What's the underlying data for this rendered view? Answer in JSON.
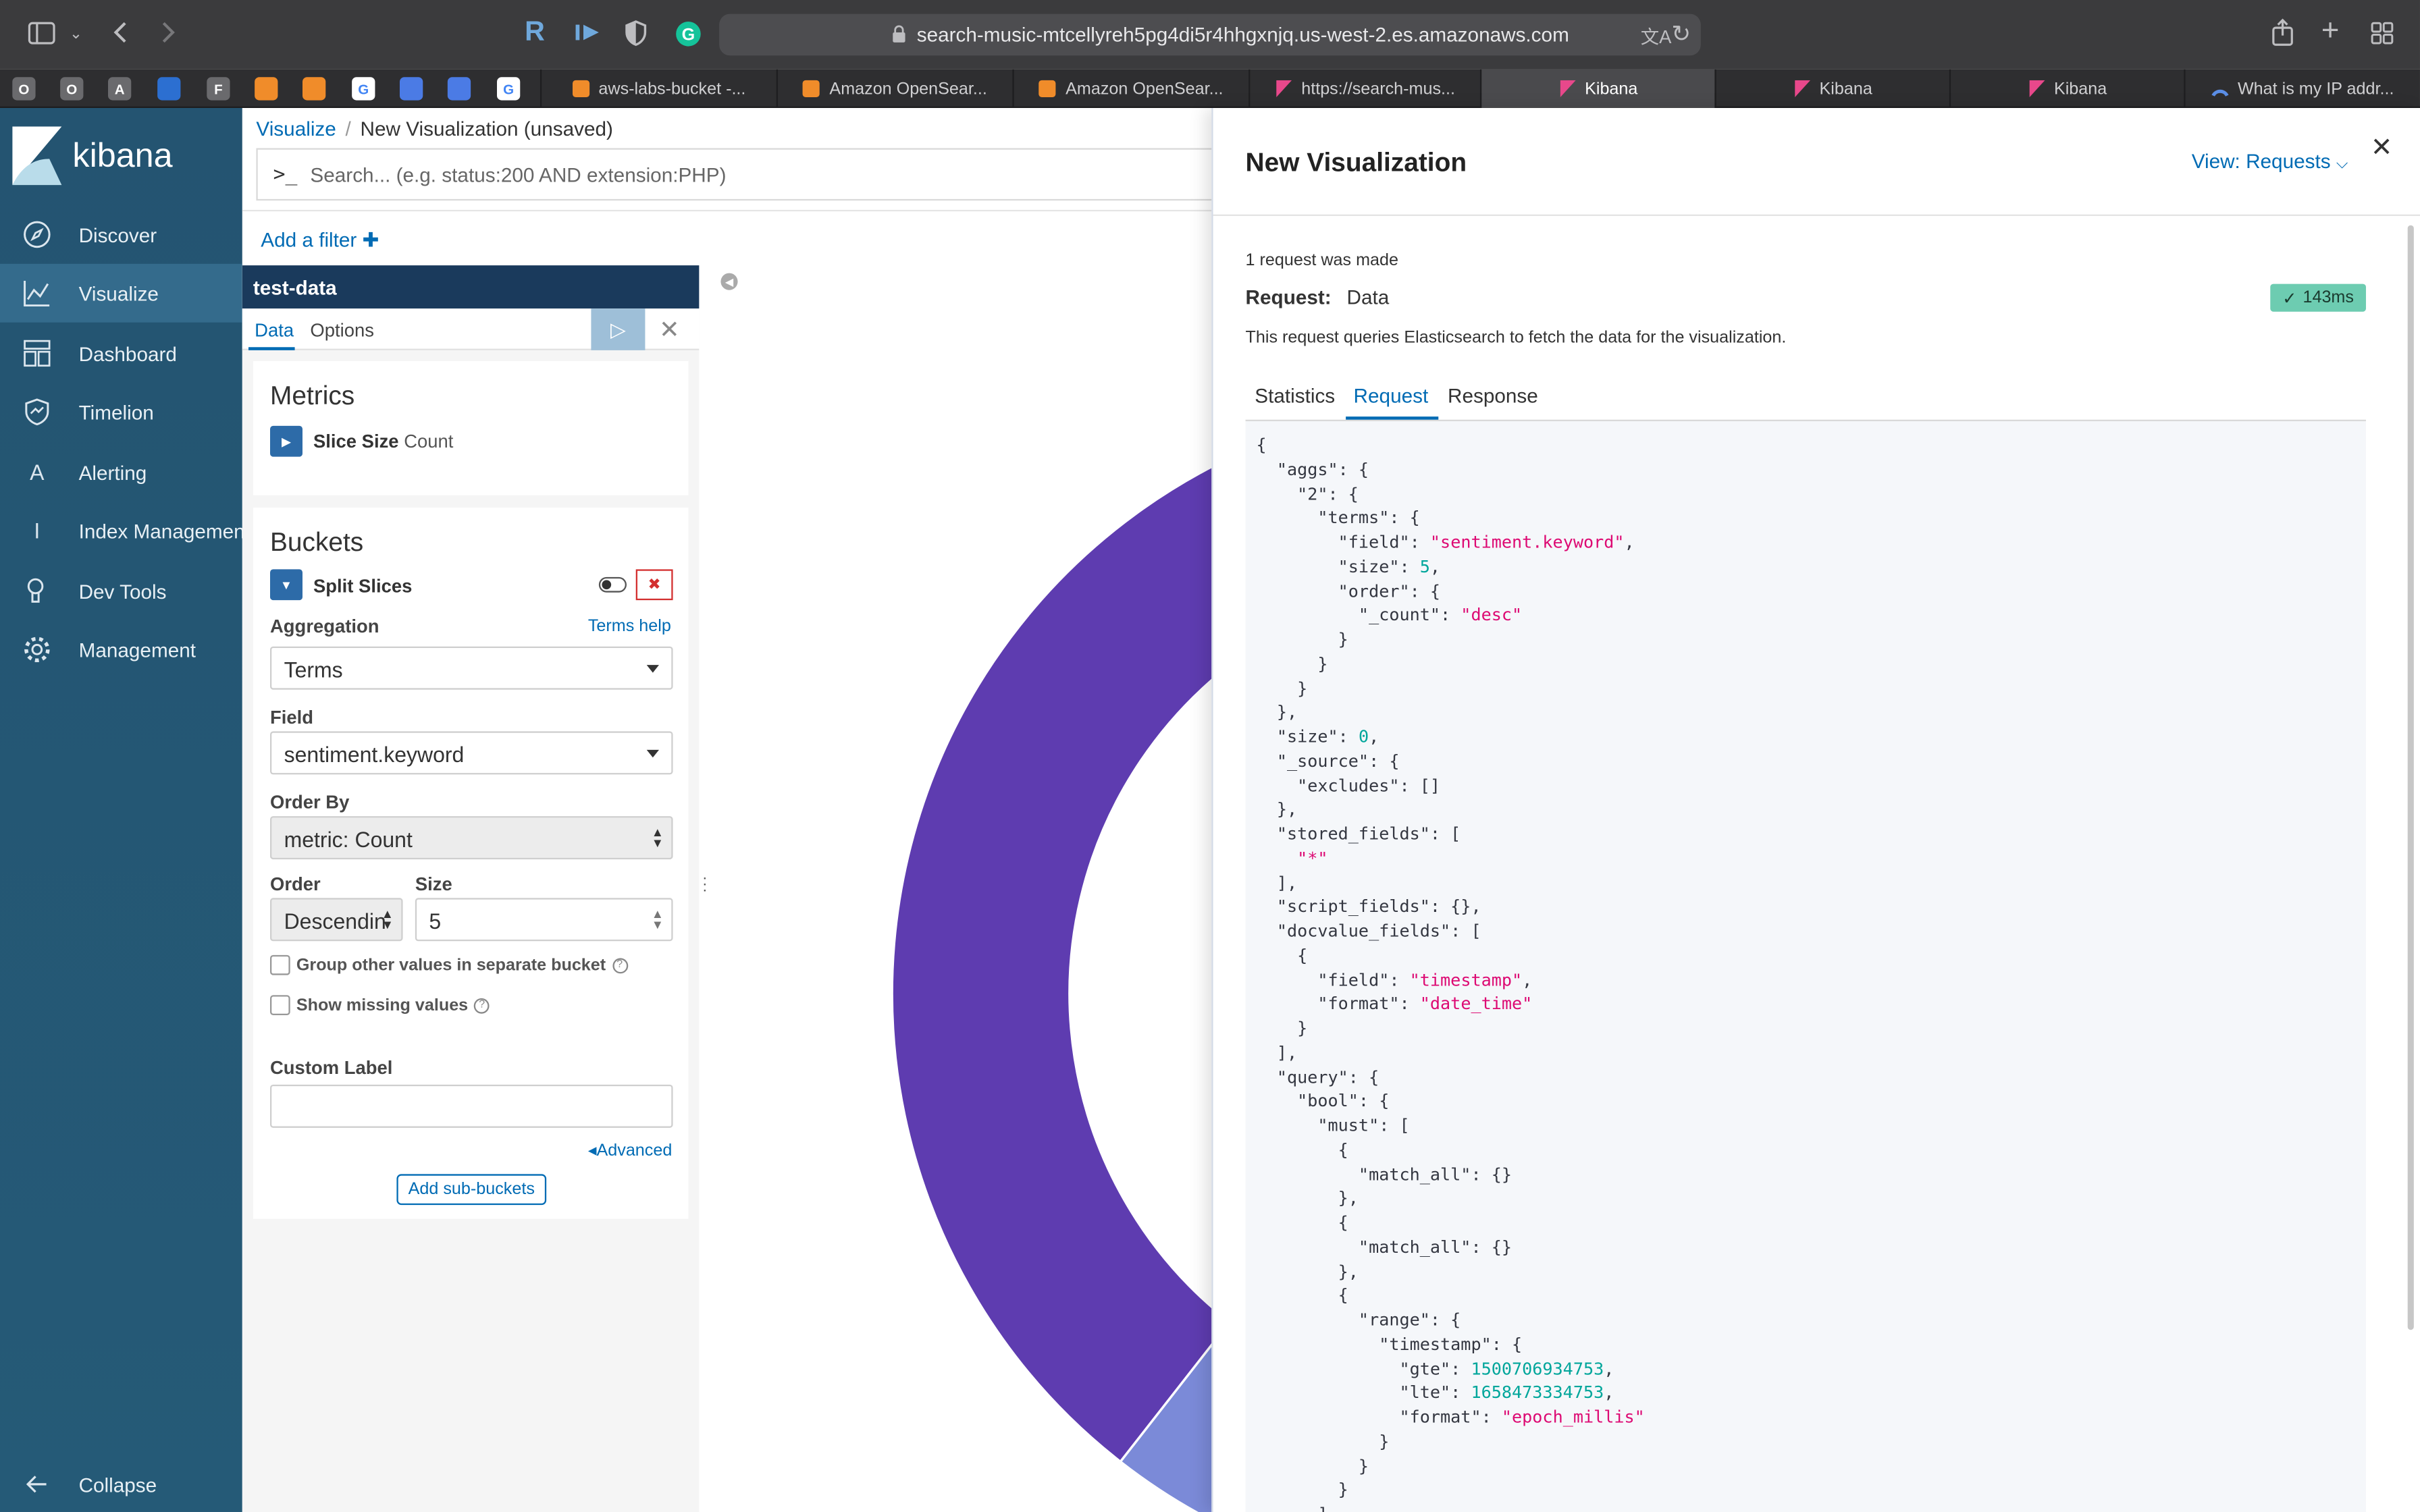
{
  "browser": {
    "url": "search-music-mtcellyreh5pg4di5r4hhgxnjq.us-west-2.es.amazonaws.com",
    "pinned_tabs": [
      "O",
      "O",
      "A",
      "",
      "F",
      "",
      "",
      "",
      "",
      "",
      ""
    ],
    "tabs": [
      {
        "label": "aws-labs-bucket -...",
        "icon": "aws-cube-icon",
        "active": false
      },
      {
        "label": "Amazon OpenSear...",
        "icon": "aws-cube-icon",
        "active": false
      },
      {
        "label": "Amazon OpenSear...",
        "icon": "aws-cube-icon",
        "active": false
      },
      {
        "label": "https://search-mus...",
        "icon": "kibana-logo-icon",
        "active": false
      },
      {
        "label": "Kibana",
        "icon": "kibana-logo-icon",
        "active": true
      },
      {
        "label": "Kibana",
        "icon": "kibana-logo-icon",
        "active": false
      },
      {
        "label": "Kibana",
        "icon": "kibana-logo-icon",
        "active": false
      },
      {
        "label": "What is my IP addr...",
        "icon": "ip-icon",
        "active": false
      }
    ]
  },
  "sidebar": {
    "logo": "kibana",
    "items": [
      {
        "label": "Discover",
        "icon": "compass-icon"
      },
      {
        "label": "Visualize",
        "icon": "chart-icon",
        "active": true
      },
      {
        "label": "Dashboard",
        "icon": "dashboard-icon"
      },
      {
        "label": "Timelion",
        "icon": "shield-icon"
      },
      {
        "label": "Alerting",
        "icon": "letter-a-icon",
        "glyph": "A"
      },
      {
        "label": "Index Management",
        "icon": "letter-i-icon",
        "glyph": "I"
      },
      {
        "label": "Dev Tools",
        "icon": "wrench-icon"
      },
      {
        "label": "Management",
        "icon": "gear-icon"
      }
    ],
    "collapse_label": "Collapse"
  },
  "main": {
    "breadcrumb": {
      "root": "Visualize",
      "separator": "/",
      "current": "New Visualization (unsaved)"
    },
    "search": {
      "prompt": ">_",
      "placeholder": "Search... (e.g. status:200 AND extension:PHP)"
    },
    "add_filter": "Add a filter",
    "editor": {
      "index_pattern": "test-data",
      "tabs": {
        "data": "Data",
        "options": "Options"
      },
      "metrics": {
        "title": "Metrics",
        "agg_name": "Slice Size",
        "agg_type": "Count"
      },
      "buckets": {
        "title": "Buckets",
        "agg_name": "Split Slices",
        "aggregation_label": "Aggregation",
        "terms_help": "Terms help",
        "aggregation_value": "Terms",
        "field_label": "Field",
        "field_value": "sentiment.keyword",
        "order_by_label": "Order By",
        "order_by_value": "metric: Count",
        "order_label": "Order",
        "order_value": "Descendin",
        "size_label": "Size",
        "size_value": "5",
        "group_other_label": "Group other values in separate bucket",
        "show_missing_label": "Show missing values",
        "custom_label_label": "Custom Label",
        "custom_label_value": "",
        "advanced": "Advanced",
        "add_sub_buckets": "Add sub-buckets"
      }
    },
    "donut_colors": [
      "#5e3cb0",
      "#7b8ad8"
    ]
  },
  "flyout": {
    "title": "New Visualization",
    "view_menu": "View: Requests",
    "requests_count": "1 request was made",
    "request_label": "Request:",
    "request_name": "Data",
    "time": "143ms",
    "description": "This request queries Elasticsearch to fetch the data for the visualization.",
    "tabs": [
      "Statistics",
      "Request",
      "Response"
    ],
    "active_tab": "Request",
    "code_lines": [
      [
        [
          "p",
          "{"
        ]
      ],
      [
        [
          "p",
          "  \"aggs\": {"
        ]
      ],
      [
        [
          "p",
          "    \"2\": {"
        ]
      ],
      [
        [
          "p",
          "      \"terms\": {"
        ]
      ],
      [
        [
          "p",
          "        \"field\": "
        ],
        [
          "s",
          "\"sentiment.keyword\""
        ],
        [
          "p",
          ","
        ]
      ],
      [
        [
          "p",
          "        \"size\": "
        ],
        [
          "n",
          "5"
        ],
        [
          "p",
          ","
        ]
      ],
      [
        [
          "p",
          "        \"order\": {"
        ]
      ],
      [
        [
          "p",
          "          \"_count\": "
        ],
        [
          "s",
          "\"desc\""
        ]
      ],
      [
        [
          "p",
          "        }"
        ]
      ],
      [
        [
          "p",
          "      }"
        ]
      ],
      [
        [
          "p",
          "    }"
        ]
      ],
      [
        [
          "p",
          "  },"
        ]
      ],
      [
        [
          "p",
          "  \"size\": "
        ],
        [
          "n",
          "0"
        ],
        [
          "p",
          ","
        ]
      ],
      [
        [
          "p",
          "  \"_source\": {"
        ]
      ],
      [
        [
          "p",
          "    \"excludes\": []"
        ]
      ],
      [
        [
          "p",
          "  },"
        ]
      ],
      [
        [
          "p",
          "  \"stored_fields\": ["
        ]
      ],
      [
        [
          "s",
          "    \"*\""
        ]
      ],
      [
        [
          "p",
          "  ],"
        ]
      ],
      [
        [
          "p",
          "  \"script_fields\": {},"
        ]
      ],
      [
        [
          "p",
          "  \"docvalue_fields\": ["
        ]
      ],
      [
        [
          "p",
          "    {"
        ]
      ],
      [
        [
          "p",
          "      \"field\": "
        ],
        [
          "s",
          "\"timestamp\""
        ],
        [
          "p",
          ","
        ]
      ],
      [
        [
          "p",
          "      \"format\": "
        ],
        [
          "s",
          "\"date_time\""
        ]
      ],
      [
        [
          "p",
          "    }"
        ]
      ],
      [
        [
          "p",
          "  ],"
        ]
      ],
      [
        [
          "p",
          "  \"query\": {"
        ]
      ],
      [
        [
          "p",
          "    \"bool\": {"
        ]
      ],
      [
        [
          "p",
          "      \"must\": ["
        ]
      ],
      [
        [
          "p",
          "        {"
        ]
      ],
      [
        [
          "p",
          "          \"match_all\": {}"
        ]
      ],
      [
        [
          "p",
          "        },"
        ]
      ],
      [
        [
          "p",
          "        {"
        ]
      ],
      [
        [
          "p",
          "          \"match_all\": {}"
        ]
      ],
      [
        [
          "p",
          "        },"
        ]
      ],
      [
        [
          "p",
          "        {"
        ]
      ],
      [
        [
          "p",
          "          \"range\": {"
        ]
      ],
      [
        [
          "p",
          "            \"timestamp\": {"
        ]
      ],
      [
        [
          "p",
          "              \"gte\": "
        ],
        [
          "n",
          "1500706934753"
        ],
        [
          "p",
          ","
        ]
      ],
      [
        [
          "p",
          "              \"lte\": "
        ],
        [
          "n",
          "1658473334753"
        ],
        [
          "p",
          ","
        ]
      ],
      [
        [
          "p",
          "              \"format\": "
        ],
        [
          "s",
          "\"epoch_millis\""
        ]
      ],
      [
        [
          "p",
          "            }"
        ]
      ],
      [
        [
          "p",
          "          }"
        ]
      ],
      [
        [
          "p",
          "        }"
        ]
      ],
      [
        [
          "p",
          "      ]"
        ]
      ]
    ]
  }
}
